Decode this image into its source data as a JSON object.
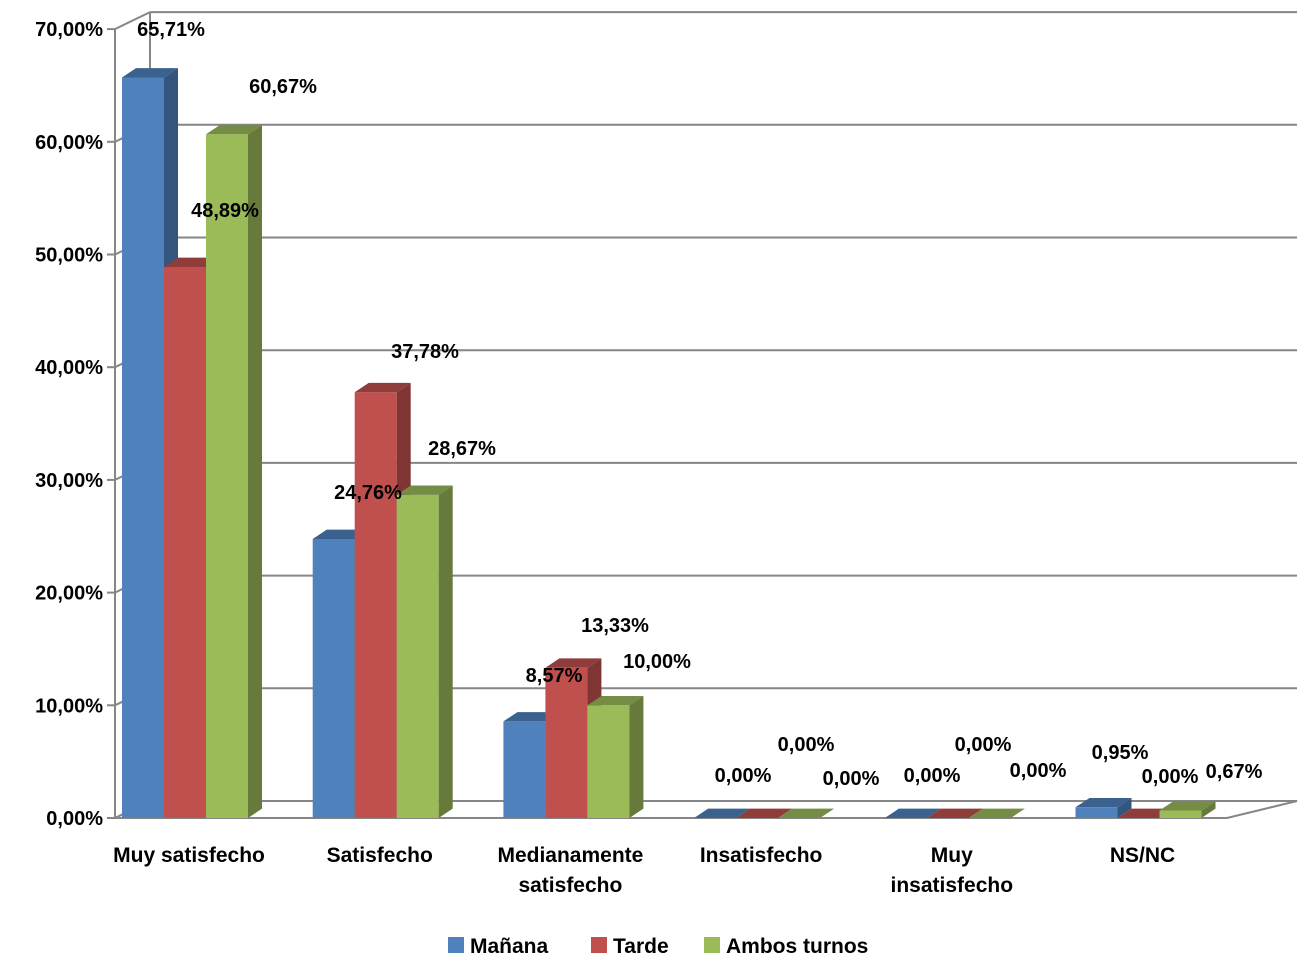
{
  "chart_data": {
    "type": "bar",
    "variant": "3d-clustered-column",
    "categories": [
      [
        "Muy satisfecho"
      ],
      [
        "Satisfecho"
      ],
      [
        "Medianamente",
        "satisfecho"
      ],
      [
        "Insatisfecho"
      ],
      [
        "Muy",
        "insatisfecho"
      ],
      [
        "NS/NC"
      ]
    ],
    "series": [
      {
        "name": "Mañana",
        "color": "#4F81BD",
        "values": [
          65.71,
          24.76,
          8.57,
          0.0,
          0.0,
          0.95
        ],
        "labels": [
          "65,71%",
          "24,76%",
          "8,57%",
          "0,00%",
          "0,00%",
          "0,95%"
        ]
      },
      {
        "name": "Tarde",
        "color": "#C0504D",
        "values": [
          48.89,
          37.78,
          13.33,
          0.0,
          0.0,
          0.0
        ],
        "labels": [
          "48,89%",
          "37,78%",
          "13,33%",
          "0,00%",
          "0,00%",
          "0,00%"
        ]
      },
      {
        "name": "Ambos turnos",
        "color": "#9BBB59",
        "values": [
          60.67,
          28.67,
          10.0,
          0.0,
          0.0,
          0.67
        ],
        "labels": [
          "60,67%",
          "28,67%",
          "10,00%",
          "0,00%",
          "0,00%",
          "0,67%"
        ]
      }
    ],
    "y_ticks": [
      "0,00%",
      "10,00%",
      "20,00%",
      "30,00%",
      "40,00%",
      "50,00%",
      "60,00%",
      "70,00%"
    ],
    "ylim": [
      0,
      70
    ],
    "grid": true,
    "legend_position": "bottom"
  }
}
